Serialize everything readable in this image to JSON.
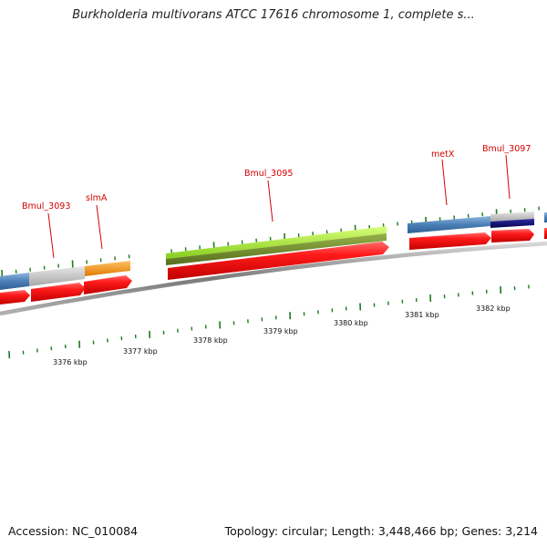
{
  "title": "Burkholderia multivorans ATCC 17616 chromosome 1, complete s...",
  "footer": {
    "accession": "Accession: NC_010084",
    "summary": "Topology: circular; Length: 3,448,466 bp; Genes: 3,214"
  },
  "gene_labels": [
    "Bmul_3093",
    "slmA",
    "Bmul_3095",
    "metX",
    "Bmul_3097"
  ],
  "scale_labels": [
    "3376 kbp",
    "3377 kbp",
    "3378 kbp",
    "3379 kbp",
    "3380 kbp",
    "3381 kbp",
    "3382 kbp"
  ],
  "colors": {
    "label": "#d40000",
    "forward_arrow": "#ee1111",
    "steel_blue": "#4a7fb5",
    "grey": "#c4c4c4",
    "orange": "#f28c0f",
    "lime": "#a4ec2c",
    "olive": "#6f8d2c",
    "navy": "#0b0b6e",
    "tick": "#1e7a1e",
    "backbone": "#8a8a8a"
  }
}
